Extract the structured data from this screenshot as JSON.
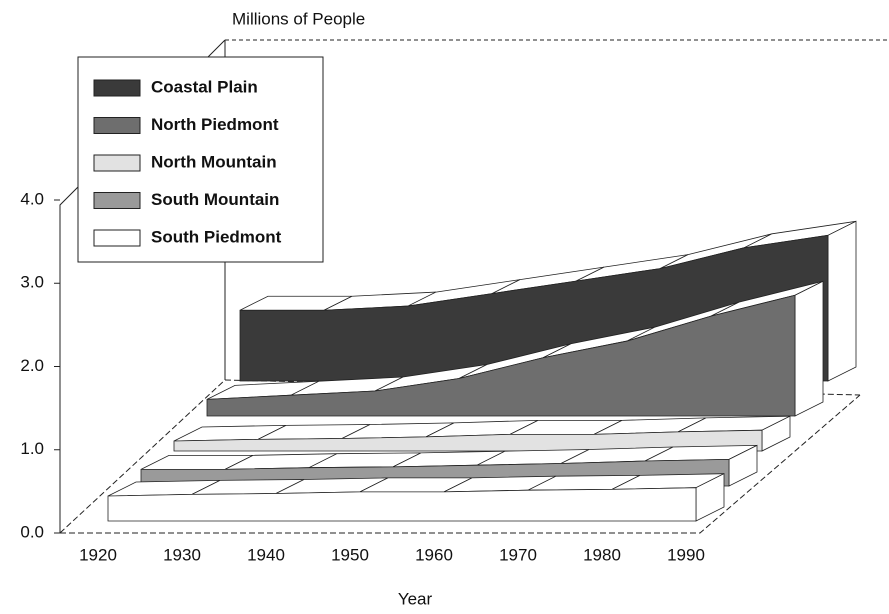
{
  "chart_data": {
    "type": "ribbon3d",
    "title": "Millions of People",
    "x_label": "Year",
    "categories": [
      "1920",
      "1930",
      "1940",
      "1950",
      "1960",
      "1970",
      "1980",
      "1990"
    ],
    "series": [
      {
        "name": "Coastal Plain",
        "color": "#3a3a3a",
        "values": [
          0.85,
          0.85,
          0.9,
          1.05,
          1.2,
          1.35,
          1.6,
          1.75
        ]
      },
      {
        "name": "North Piedmont",
        "color": "#6e6e6e",
        "values": [
          0.2,
          0.25,
          0.3,
          0.45,
          0.7,
          0.9,
          1.2,
          1.45
        ]
      },
      {
        "name": "North Mountain",
        "color": "#e2e2e2",
        "values": [
          0.12,
          0.14,
          0.15,
          0.17,
          0.2,
          0.2,
          0.23,
          0.25
        ]
      },
      {
        "name": "South Mountain",
        "color": "#9a9a9a",
        "values": [
          0.2,
          0.2,
          0.22,
          0.23,
          0.25,
          0.27,
          0.3,
          0.32
        ]
      },
      {
        "name": "South Piedmont",
        "color": "#ffffff",
        "values": [
          0.3,
          0.32,
          0.33,
          0.35,
          0.35,
          0.37,
          0.38,
          0.4
        ]
      }
    ],
    "ylim": [
      0,
      4
    ],
    "yticks": [
      {
        "value": 0,
        "label": "0.0"
      },
      {
        "value": 1,
        "label": "1.0"
      },
      {
        "value": 2,
        "label": "2.0"
      },
      {
        "value": 3,
        "label": "3.0"
      },
      {
        "value": 4,
        "label": "4.0"
      }
    ]
  }
}
